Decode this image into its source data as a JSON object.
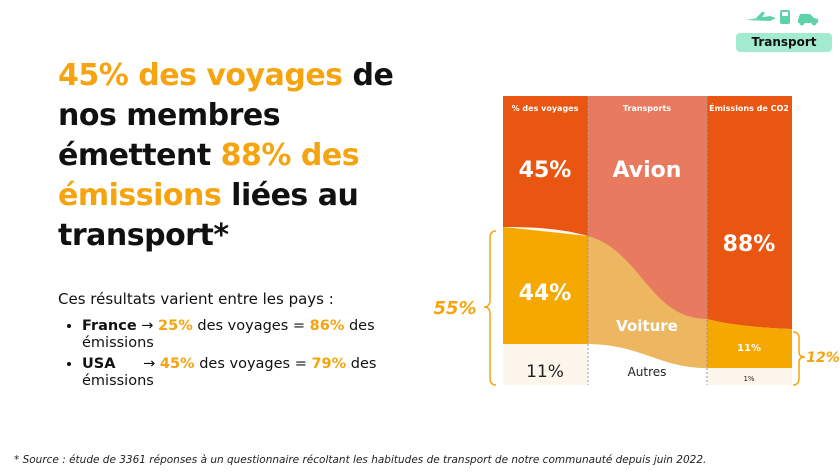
{
  "tag": {
    "label": "Transport",
    "icons": [
      "plane-icon",
      "train-icon",
      "car-icon"
    ],
    "color": "#a3ebd0"
  },
  "title": {
    "part1": "45% des voyages",
    "part2": " de nos membres émettent ",
    "part3": "88% des émissions",
    "part4": " liées au transport*"
  },
  "subtitle": "Ces résultats varient entre les pays :",
  "countries": [
    {
      "name": "France",
      "arrow": " → ",
      "trips": "25%",
      "mid": " des voyages = ",
      "emissions": "86%",
      "end": " des émissions"
    },
    {
      "name": "USA",
      "arrow": "      → ",
      "trips": "45%",
      "mid": " des voyages = ",
      "emissions": "79%",
      "end": " des émissions"
    }
  ],
  "footnote": "* Source : étude de 3361 réponses à un questionnaire récoltant les habitudes de transport de notre communauté depuis juin 2022.",
  "chart_data": {
    "type": "sankey",
    "columns": [
      "% des voyages",
      "Transports",
      "Émissions de CO2"
    ],
    "flows": [
      {
        "name": "Avion",
        "trips": "45%",
        "emissions": "88%",
        "color": "#e85612"
      },
      {
        "name": "Voiture",
        "trips": "44%",
        "emissions": "11%",
        "color": "#f5a800"
      },
      {
        "name": "Autres",
        "trips": "11%",
        "emissions": "1%",
        "color": "#fdf6ec"
      }
    ],
    "bracket_left": "55%",
    "bracket_right": "12%"
  },
  "colors": {
    "accent": "#f5a40f",
    "avion": "#e85612",
    "avion_light": "#e87a5f",
    "voiture_light": "#edb660"
  }
}
